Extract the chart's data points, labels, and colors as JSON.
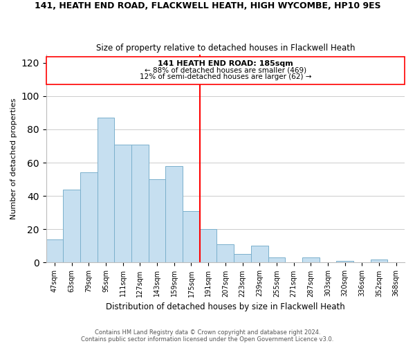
{
  "title": "141, HEATH END ROAD, FLACKWELL HEATH, HIGH WYCOMBE, HP10 9ES",
  "subtitle": "Size of property relative to detached houses in Flackwell Heath",
  "xlabel": "Distribution of detached houses by size in Flackwell Heath",
  "ylabel": "Number of detached properties",
  "bar_labels": [
    "47sqm",
    "63sqm",
    "79sqm",
    "95sqm",
    "111sqm",
    "127sqm",
    "143sqm",
    "159sqm",
    "175sqm",
    "191sqm",
    "207sqm",
    "223sqm",
    "239sqm",
    "255sqm",
    "271sqm",
    "287sqm",
    "303sqm",
    "320sqm",
    "336sqm",
    "352sqm",
    "368sqm"
  ],
  "bar_values": [
    14,
    44,
    54,
    87,
    71,
    71,
    50,
    58,
    31,
    20,
    11,
    5,
    10,
    3,
    0,
    3,
    0,
    1,
    0,
    2,
    0
  ],
  "bar_color": "#c6dff0",
  "bar_edge_color": "#7ab0cc",
  "annotation_title": "141 HEATH END ROAD: 185sqm",
  "annotation_line1": "← 88% of detached houses are smaller (469)",
  "annotation_line2": "12% of semi-detached houses are larger (62) →",
  "ylim": [
    0,
    125
  ],
  "yticks": [
    0,
    20,
    40,
    60,
    80,
    100,
    120
  ],
  "footnote1": "Contains HM Land Registry data © Crown copyright and database right 2024.",
  "footnote2": "Contains public sector information licensed under the Open Government Licence v3.0.",
  "background_color": "#ffffff",
  "grid_color": "#cccccc",
  "highlight_bar_index": 8
}
